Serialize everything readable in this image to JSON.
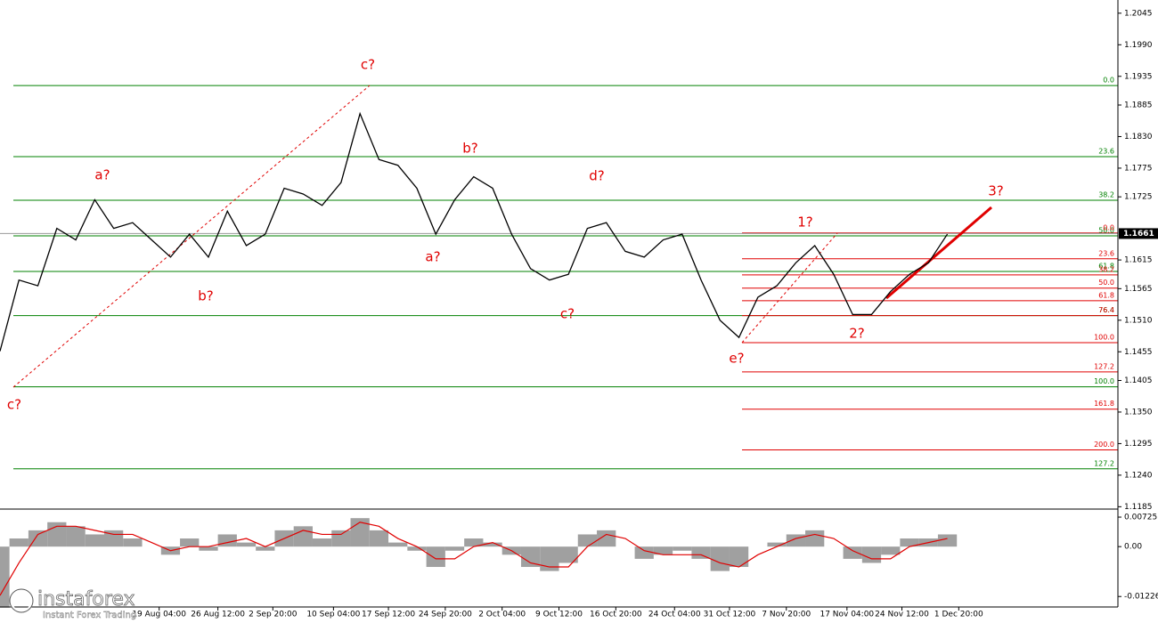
{
  "chart_data": [
    {
      "type": "line",
      "symbol_price": 1.1661,
      "x": [
        0,
        10,
        20,
        30,
        40,
        50,
        60,
        70,
        80,
        90,
        100,
        110,
        120,
        130,
        140,
        150,
        160,
        170,
        180,
        190,
        200,
        210,
        220,
        230,
        240,
        250,
        260,
        270,
        280,
        290,
        300,
        310,
        320,
        330,
        340,
        350,
        360,
        370,
        380,
        390,
        400,
        410,
        420,
        430,
        440,
        450,
        460,
        470,
        480,
        490,
        500
      ],
      "series": [
        {
          "color": "#000000",
          "values": [
            1.1456,
            1.158,
            1.157,
            1.167,
            1.165,
            1.172,
            1.167,
            1.168,
            1.165,
            1.162,
            1.166,
            1.162,
            1.17,
            1.164,
            1.166,
            1.174,
            1.173,
            1.171,
            1.175,
            1.187,
            1.179,
            1.178,
            1.174,
            1.166,
            1.172,
            1.176,
            1.174,
            1.166,
            1.16,
            1.158,
            1.159,
            1.167,
            1.168,
            1.163,
            1.162,
            1.165,
            1.166,
            1.158,
            1.151,
            1.148,
            1.155,
            1.157,
            1.161,
            1.164,
            1.159,
            1.152,
            1.152,
            1.156,
            1.159,
            1.161,
            1.166
          ]
        }
      ],
      "xlim": [
        0,
        590
      ],
      "ylim": [
        1.1184,
        1.2068
      ],
      "yticks": [
        {
          "value": 1.2045,
          "label": "1.2045"
        },
        {
          "value": 1.199,
          "label": "1.1990"
        },
        {
          "value": 1.1935,
          "label": "1.1935"
        },
        {
          "value": 1.1885,
          "label": "1.1885"
        },
        {
          "value": 1.183,
          "label": "1.1830"
        },
        {
          "value": 1.1775,
          "label": "1.1775"
        },
        {
          "value": 1.1725,
          "label": "1.1725"
        },
        {
          "value": 1.1615,
          "label": "1.1615"
        },
        {
          "value": 1.1565,
          "label": "1.1565"
        },
        {
          "value": 1.151,
          "label": "1.1510"
        },
        {
          "value": 1.1455,
          "label": "1.1455"
        },
        {
          "value": 1.1405,
          "label": "1.1405"
        },
        {
          "value": 1.135,
          "label": "1.1350"
        },
        {
          "value": 1.1295,
          "label": "1.1295"
        },
        {
          "value": 1.124,
          "label": "1.1240"
        },
        {
          "value": 1.1185,
          "label": "1.1185"
        }
      ],
      "green_levels": [
        {
          "label": "0.0",
          "price": 1.1919
        },
        {
          "label": "23.6",
          "price": 1.1795
        },
        {
          "label": "38.2",
          "price": 1.1719
        },
        {
          "label": "50.0",
          "price": 1.1657
        },
        {
          "label": "61.8",
          "price": 1.1595
        },
        {
          "label": "76.4",
          "price": 1.1518
        },
        {
          "label": "100.0",
          "price": 1.1394
        },
        {
          "label": "127.2",
          "price": 1.1251
        }
      ],
      "red_levels": [
        {
          "label": "0.0",
          "price": 1.1662
        },
        {
          "label": "23.6",
          "price": 1.1617
        },
        {
          "label": "38.2",
          "price": 1.1589
        },
        {
          "label": "50.0",
          "price": 1.1566
        },
        {
          "label": "61.8",
          "price": 1.1544
        },
        {
          "label": "76.4",
          "price": 1.1518
        },
        {
          "label": "100.0",
          "price": 1.1471
        },
        {
          "label": "127.2",
          "price": 1.142
        },
        {
          "label": "161.8",
          "price": 1.1355
        },
        {
          "label": "200.0",
          "price": 1.1284
        }
      ],
      "annotations": [
        "c?",
        "a?",
        "b?",
        "c?",
        "b?",
        "a?",
        "c?",
        "d?",
        "e?",
        "1?",
        "2?",
        "3?"
      ]
    },
    {
      "type": "bar",
      "x": [
        0,
        10,
        20,
        30,
        40,
        50,
        60,
        70,
        80,
        90,
        100,
        110,
        120,
        130,
        140,
        150,
        160,
        170,
        180,
        190,
        200,
        210,
        220,
        230,
        240,
        250,
        260,
        270,
        280,
        290,
        300,
        310,
        320,
        330,
        340,
        350,
        360,
        370,
        380,
        390,
        400,
        410,
        420,
        430,
        440,
        450,
        460,
        470,
        480,
        490,
        500
      ],
      "series": [
        {
          "color": "#a0a0a0",
          "values": [
            -0.015,
            0.002,
            0.004,
            0.006,
            0.005,
            0.003,
            0.004,
            0.002,
            0.0,
            -0.002,
            0.002,
            -0.001,
            0.003,
            0.001,
            -0.001,
            0.004,
            0.005,
            0.002,
            0.004,
            0.007,
            0.004,
            0.001,
            -0.001,
            -0.005,
            -0.001,
            0.002,
            0.001,
            -0.002,
            -0.005,
            -0.006,
            -0.004,
            0.003,
            0.004,
            0.0,
            -0.003,
            -0.002,
            -0.001,
            -0.003,
            -0.006,
            -0.005,
            0.0,
            0.001,
            0.003,
            0.004,
            0.0,
            -0.003,
            -0.004,
            -0.002,
            0.002,
            0.002,
            0.003
          ]
        },
        {
          "color": "#e00000",
          "values": [
            -0.012,
            -0.004,
            0.003,
            0.005,
            0.005,
            0.004,
            0.003,
            0.003,
            0.001,
            -0.001,
            0.0,
            0.0,
            0.001,
            0.002,
            0.0,
            0.002,
            0.004,
            0.003,
            0.003,
            0.006,
            0.005,
            0.002,
            0.0,
            -0.003,
            -0.003,
            0.0,
            0.001,
            -0.001,
            -0.004,
            -0.005,
            -0.005,
            0.0,
            0.003,
            0.002,
            -0.001,
            -0.002,
            -0.002,
            -0.002,
            -0.004,
            -0.005,
            -0.002,
            0.0,
            0.002,
            0.003,
            0.002,
            -0.001,
            -0.003,
            -0.003,
            0.0,
            0.001,
            0.002
          ]
        }
      ],
      "xlim": [
        0,
        590
      ],
      "ylim": [
        -0.0144,
        0.00857
      ],
      "yticks": [
        {
          "value": 0.00725,
          "label": "0.00725"
        },
        {
          "value": 0,
          "label": "0.00"
        },
        {
          "value": -0.01226,
          "label": "-0.01226"
        }
      ],
      "xticks": [
        {
          "value": 84,
          "label": "19 Aug 04:00"
        },
        {
          "value": 115,
          "label": "26 Aug 12:00"
        },
        {
          "value": 144,
          "label": "2 Sep 20:00"
        },
        {
          "value": 176,
          "label": "10 Sep 04:00"
        },
        {
          "value": 205,
          "label": "17 Sep 12:00"
        },
        {
          "value": 235,
          "label": "24 Sep 20:00"
        },
        {
          "value": 265,
          "label": "2 Oct 04:00"
        },
        {
          "value": 295,
          "label": "9 Oct 12:00"
        },
        {
          "value": 325,
          "label": "16 Oct 20:00"
        },
        {
          "value": 356,
          "label": "24 Oct 04:00"
        },
        {
          "value": 385,
          "label": "31 Oct 12:00"
        },
        {
          "value": 415,
          "label": "7 Nov 20:00"
        },
        {
          "value": 447,
          "label": "17 Nov 04:00"
        },
        {
          "value": 476,
          "label": "24 Nov 12:00"
        },
        {
          "value": 506,
          "label": "1 Dec 20:00"
        }
      ]
    }
  ],
  "watermark": {
    "brand": "instaforex",
    "tagline": "Instant Forex Trading"
  }
}
